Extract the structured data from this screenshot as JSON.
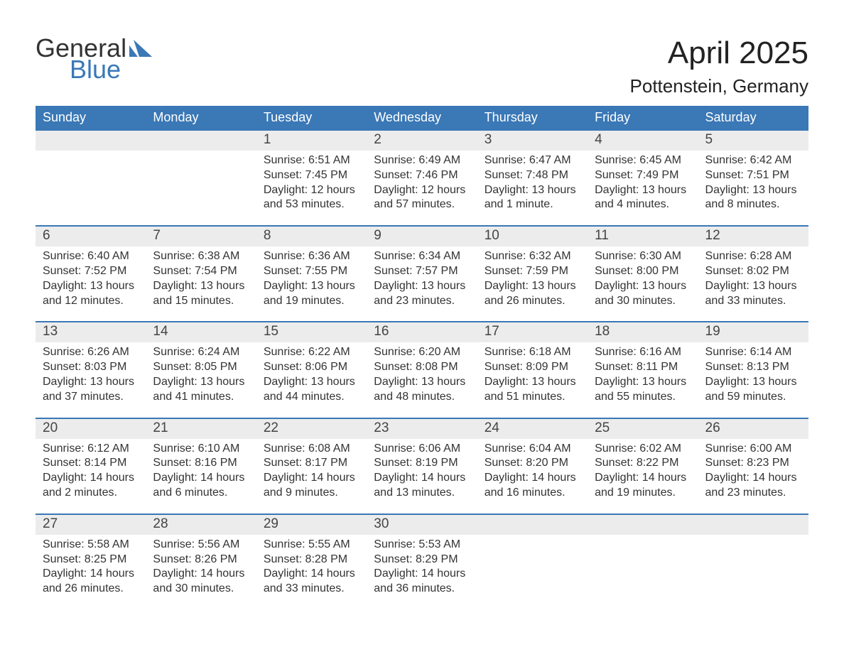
{
  "brand": {
    "word1": "General",
    "word2": "Blue"
  },
  "title": "April 2025",
  "location": "Pottenstein, Germany",
  "colors": {
    "brand_blue": "#3a78b6",
    "light_gray": "#ececec",
    "text": "#333333",
    "white": "#ffffff"
  },
  "days_of_week": [
    "Sunday",
    "Monday",
    "Tuesday",
    "Wednesday",
    "Thursday",
    "Friday",
    "Saturday"
  ],
  "weeks": [
    {
      "nums": [
        "",
        "",
        "1",
        "2",
        "3",
        "4",
        "5"
      ],
      "cells": [
        null,
        null,
        {
          "sunrise": "6:51 AM",
          "sunset": "7:45 PM",
          "daylight": "12 hours and 53 minutes."
        },
        {
          "sunrise": "6:49 AM",
          "sunset": "7:46 PM",
          "daylight": "12 hours and 57 minutes."
        },
        {
          "sunrise": "6:47 AM",
          "sunset": "7:48 PM",
          "daylight": "13 hours and 1 minute."
        },
        {
          "sunrise": "6:45 AM",
          "sunset": "7:49 PM",
          "daylight": "13 hours and 4 minutes."
        },
        {
          "sunrise": "6:42 AM",
          "sunset": "7:51 PM",
          "daylight": "13 hours and 8 minutes."
        }
      ]
    },
    {
      "nums": [
        "6",
        "7",
        "8",
        "9",
        "10",
        "11",
        "12"
      ],
      "cells": [
        {
          "sunrise": "6:40 AM",
          "sunset": "7:52 PM",
          "daylight": "13 hours and 12 minutes."
        },
        {
          "sunrise": "6:38 AM",
          "sunset": "7:54 PM",
          "daylight": "13 hours and 15 minutes."
        },
        {
          "sunrise": "6:36 AM",
          "sunset": "7:55 PM",
          "daylight": "13 hours and 19 minutes."
        },
        {
          "sunrise": "6:34 AM",
          "sunset": "7:57 PM",
          "daylight": "13 hours and 23 minutes."
        },
        {
          "sunrise": "6:32 AM",
          "sunset": "7:59 PM",
          "daylight": "13 hours and 26 minutes."
        },
        {
          "sunrise": "6:30 AM",
          "sunset": "8:00 PM",
          "daylight": "13 hours and 30 minutes."
        },
        {
          "sunrise": "6:28 AM",
          "sunset": "8:02 PM",
          "daylight": "13 hours and 33 minutes."
        }
      ]
    },
    {
      "nums": [
        "13",
        "14",
        "15",
        "16",
        "17",
        "18",
        "19"
      ],
      "cells": [
        {
          "sunrise": "6:26 AM",
          "sunset": "8:03 PM",
          "daylight": "13 hours and 37 minutes."
        },
        {
          "sunrise": "6:24 AM",
          "sunset": "8:05 PM",
          "daylight": "13 hours and 41 minutes."
        },
        {
          "sunrise": "6:22 AM",
          "sunset": "8:06 PM",
          "daylight": "13 hours and 44 minutes."
        },
        {
          "sunrise": "6:20 AM",
          "sunset": "8:08 PM",
          "daylight": "13 hours and 48 minutes."
        },
        {
          "sunrise": "6:18 AM",
          "sunset": "8:09 PM",
          "daylight": "13 hours and 51 minutes."
        },
        {
          "sunrise": "6:16 AM",
          "sunset": "8:11 PM",
          "daylight": "13 hours and 55 minutes."
        },
        {
          "sunrise": "6:14 AM",
          "sunset": "8:13 PM",
          "daylight": "13 hours and 59 minutes."
        }
      ]
    },
    {
      "nums": [
        "20",
        "21",
        "22",
        "23",
        "24",
        "25",
        "26"
      ],
      "cells": [
        {
          "sunrise": "6:12 AM",
          "sunset": "8:14 PM",
          "daylight": "14 hours and 2 minutes."
        },
        {
          "sunrise": "6:10 AM",
          "sunset": "8:16 PM",
          "daylight": "14 hours and 6 minutes."
        },
        {
          "sunrise": "6:08 AM",
          "sunset": "8:17 PM",
          "daylight": "14 hours and 9 minutes."
        },
        {
          "sunrise": "6:06 AM",
          "sunset": "8:19 PM",
          "daylight": "14 hours and 13 minutes."
        },
        {
          "sunrise": "6:04 AM",
          "sunset": "8:20 PM",
          "daylight": "14 hours and 16 minutes."
        },
        {
          "sunrise": "6:02 AM",
          "sunset": "8:22 PM",
          "daylight": "14 hours and 19 minutes."
        },
        {
          "sunrise": "6:00 AM",
          "sunset": "8:23 PM",
          "daylight": "14 hours and 23 minutes."
        }
      ]
    },
    {
      "nums": [
        "27",
        "28",
        "29",
        "30",
        "",
        "",
        ""
      ],
      "cells": [
        {
          "sunrise": "5:58 AM",
          "sunset": "8:25 PM",
          "daylight": "14 hours and 26 minutes."
        },
        {
          "sunrise": "5:56 AM",
          "sunset": "8:26 PM",
          "daylight": "14 hours and 30 minutes."
        },
        {
          "sunrise": "5:55 AM",
          "sunset": "8:28 PM",
          "daylight": "14 hours and 33 minutes."
        },
        {
          "sunrise": "5:53 AM",
          "sunset": "8:29 PM",
          "daylight": "14 hours and 36 minutes."
        },
        null,
        null,
        null
      ]
    }
  ],
  "labels": {
    "sunrise": "Sunrise: ",
    "sunset": "Sunset: ",
    "daylight": "Daylight: "
  }
}
